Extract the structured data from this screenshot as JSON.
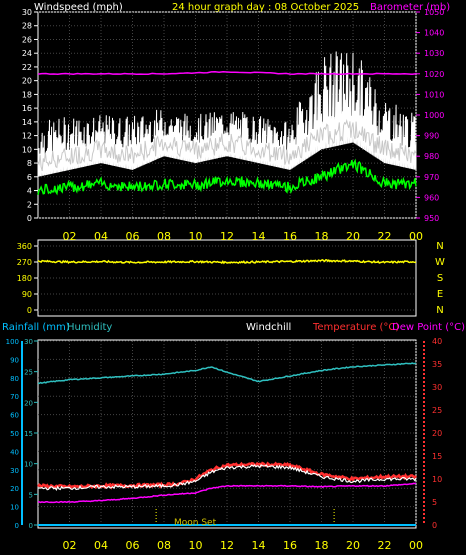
{
  "header": {
    "wind_label": "Windspeed (mph)",
    "title": "24 hour graph day : 08 October 2025",
    "baro_label": "Barometer (mb)"
  },
  "labels": {
    "rain": "Rainfall (mm)",
    "humidity": "Humidity",
    "windchill": "Windchill",
    "temperature": "Temperature (°C)",
    "dewpoint": "Dew Point (°C)",
    "moonset": "Moon Set"
  },
  "colors": {
    "wind_gust": "#ffffff",
    "wind_avg": "#c8c8c8",
    "wind_green": "#00ff00",
    "barometer": "#ff00ff",
    "direction": "#ffff00",
    "rain": "#00bfff",
    "humidity": "#2fbfbf",
    "windchill": "#ffffff",
    "temperature": "#ff3030",
    "dewpoint": "#ff00ff",
    "time_axis": "#ffff00"
  },
  "chart_data": [
    {
      "type": "line",
      "x_ticks": [
        "02",
        "04",
        "06",
        "08",
        "10",
        "12",
        "14",
        "16",
        "18",
        "20",
        "22",
        "00"
      ],
      "y_left_ticks": [
        "0",
        "2",
        "4",
        "6",
        "8",
        "10",
        "12",
        "14",
        "16",
        "18",
        "20",
        "22",
        "24",
        "26",
        "28",
        "30"
      ],
      "y_right_ticks": [
        "950",
        "960",
        "970",
        "980",
        "990",
        "1000",
        "1010",
        "1020",
        "1030",
        "1040",
        "1050"
      ],
      "ylim_left": [
        0,
        30
      ],
      "ylim_right": [
        950,
        1050
      ],
      "grid": true,
      "series": [
        {
          "name": "Windspeed (mph)",
          "hours": [
            0,
            2,
            4,
            6,
            8,
            10,
            12,
            14,
            16,
            18,
            20,
            22,
            24
          ],
          "values": [
            8,
            9,
            10,
            9,
            11,
            10,
            11,
            10,
            9,
            12,
            13,
            10,
            9
          ]
        },
        {
          "name": "Windspeed gust",
          "hours": [
            0,
            2,
            4,
            6,
            8,
            10,
            12,
            14,
            16,
            18,
            20,
            22,
            24
          ],
          "values": [
            14,
            15,
            15,
            15,
            16,
            15,
            16,
            15,
            14,
            24,
            25,
            18,
            15
          ]
        },
        {
          "hours": [
            0,
            2,
            4,
            6,
            8,
            10,
            12,
            14,
            16,
            18,
            20,
            22,
            24
          ],
          "values": [
            4,
            4.5,
            5,
            4.5,
            5,
            4.8,
            5.5,
            5,
            4.5,
            6,
            8,
            5,
            5
          ]
        },
        {
          "name": "Barometer (mb)",
          "hours": [
            0,
            4,
            8,
            12,
            16,
            20,
            24
          ],
          "values": [
            1020,
            1020,
            1020,
            1021,
            1020,
            1020,
            1020
          ]
        }
      ]
    },
    {
      "type": "line",
      "x_ticks": [],
      "y_left_ticks": [
        "0",
        "90",
        "180",
        "270",
        "360"
      ],
      "y_right_ticks": [
        "N",
        "W",
        "S",
        "E",
        "N"
      ],
      "ylim": [
        0,
        360
      ],
      "series": [
        {
          "hours": [
            0,
            2,
            4,
            6,
            8,
            10,
            12,
            14,
            16,
            18,
            20,
            22,
            24
          ],
          "values": [
            275,
            270,
            272,
            268,
            270,
            272,
            268,
            270,
            273,
            278,
            275,
            268,
            272
          ]
        }
      ]
    },
    {
      "type": "line",
      "x_ticks": [
        "02",
        "04",
        "06",
        "08",
        "10",
        "12",
        "14",
        "16",
        "18",
        "20",
        "22",
        "00"
      ],
      "y_humidity_ticks": [
        "0",
        "10",
        "20",
        "30",
        "40",
        "50",
        "60",
        "70",
        "80",
        "90",
        "100"
      ],
      "y_rain_ticks": [
        "0",
        "5",
        "10",
        "15",
        "20",
        "25",
        "30"
      ],
      "y_right_ticks": [
        "0",
        "5",
        "10",
        "15",
        "20",
        "25",
        "30",
        "35",
        "40"
      ],
      "ylim_humidity": [
        0,
        100
      ],
      "ylim_rain": [
        0,
        30
      ],
      "ylim_temp": [
        0,
        40
      ],
      "series": [
        {
          "name": "Humidity",
          "hours": [
            0,
            2,
            4,
            6,
            8,
            10,
            11,
            12,
            14,
            16,
            18,
            20,
            22,
            24
          ],
          "values": [
            77,
            79,
            80,
            81,
            82,
            84,
            86,
            83,
            78,
            81,
            84,
            86,
            87,
            88
          ]
        },
        {
          "name": "Temperature (°C)",
          "hours": [
            0,
            2,
            4,
            6,
            8,
            9,
            10,
            11,
            12,
            14,
            16,
            18,
            20,
            22,
            24
          ],
          "values": [
            8.5,
            8.3,
            8.5,
            8.6,
            8.7,
            9,
            10,
            12,
            13,
            13.2,
            13,
            11,
            10,
            10.5,
            10.5
          ]
        },
        {
          "name": "Windchill",
          "hours": [
            0,
            2,
            4,
            6,
            8,
            9,
            10,
            11,
            12,
            14,
            16,
            18,
            20,
            22,
            24
          ],
          "values": [
            8,
            8,
            8.3,
            8.3,
            8.5,
            8.8,
            9.5,
            11.5,
            12.5,
            12.8,
            12.5,
            10.5,
            9.5,
            10,
            10
          ]
        },
        {
          "name": "Dew Point (°C)",
          "hours": [
            0,
            2,
            4,
            6,
            8,
            10,
            11,
            12,
            14,
            16,
            18,
            20,
            22,
            24
          ],
          "values": [
            5,
            5,
            5.3,
            5.8,
            6.5,
            7,
            8,
            8.5,
            8.5,
            8.5,
            8.3,
            8.5,
            8.5,
            9
          ]
        },
        {
          "name": "Rainfall (mm)",
          "hours": [
            0,
            24
          ],
          "values": [
            0,
            0
          ]
        }
      ],
      "markers": [
        {
          "hour": 7.5
        },
        {
          "hour": 18.8
        }
      ]
    }
  ]
}
